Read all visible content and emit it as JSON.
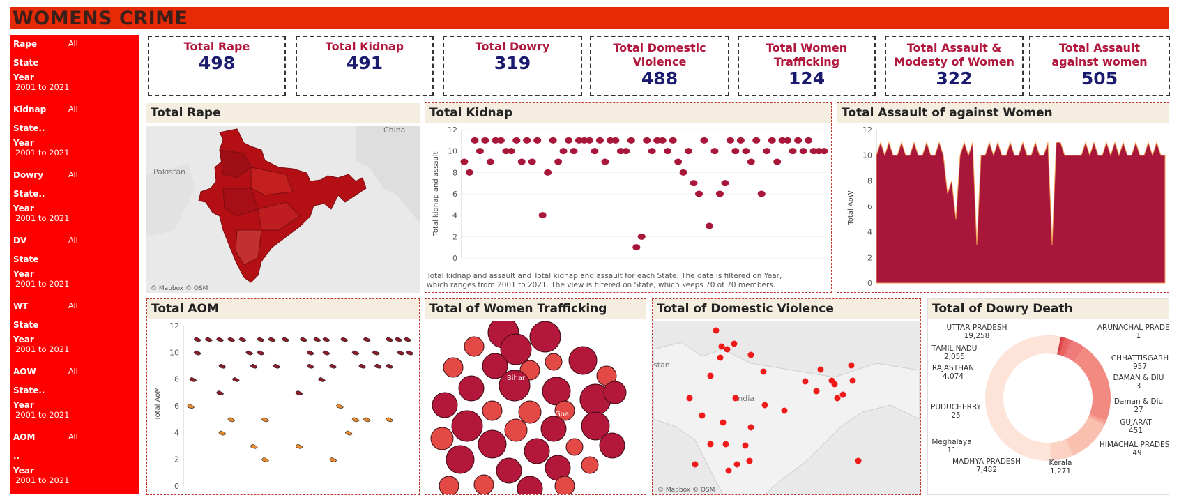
{
  "header": {
    "title": "WOMENS CRIME"
  },
  "filters": [
    {
      "name": "Rape",
      "all": "All",
      "sub": "State",
      "year": "Year",
      "range": "2001 to 2021"
    },
    {
      "name": "Kidnap",
      "all": "All",
      "sub": "State..",
      "year": "Year",
      "range": "2001 to 2021"
    },
    {
      "name": "Dowry",
      "all": "All",
      "sub": " State..",
      "year": "Year",
      "range": "2001 to 2021"
    },
    {
      "name": "DV",
      "all": "All",
      "sub": "State",
      "year": "Year",
      "range": "2001 to 2021"
    },
    {
      "name": "WT",
      "all": "All",
      "sub": " State",
      "year": "Year",
      "range": "2001 to 2021"
    },
    {
      "name": "AOW",
      "all": "All",
      "sub": " State..",
      "year": "Year",
      "range": "2001 to 2021"
    },
    {
      "name": "AOM",
      "all": "All",
      "sub": "..",
      "year": "Year",
      "range": "2001 to 2021"
    }
  ],
  "kpis": [
    {
      "label": "Total  Rape",
      "label2": "",
      "value": "498"
    },
    {
      "label": "Total Kidnap",
      "label2": "",
      "value": "491"
    },
    {
      "label": "Total Dowry",
      "label2": "",
      "value": "319"
    },
    {
      "label": "Total Domestic",
      "label2": "Violence",
      "value": "488"
    },
    {
      "label": "Total Women",
      "label2": "Trafficking",
      "value": "124"
    },
    {
      "label": "Total Assault &",
      "label2": "Modesty of Women",
      "value": "322"
    },
    {
      "label": "Total Assault",
      "label2": "against women",
      "value": "505"
    }
  ],
  "panels": {
    "rape": {
      "title": "Total Rape",
      "credit": "© Mapbox © OSM",
      "labels": {
        "china": "China",
        "pakistan": "Pakistan"
      }
    },
    "kidnap": {
      "title": "Total Kidnap",
      "ylabel": "Total kidnap and assault",
      "caption1": "Total kidnap and assault and Total kidnap and assault for each State. The data is filtered on Year,",
      "caption2": "which ranges from 2001 to 2021. The view is filtered on State, which keeps 70 of 70 members."
    },
    "aow": {
      "title": "Total Assault of against Women",
      "ylabel": "Total AoW"
    },
    "aom": {
      "title": "Total AOM",
      "ylabel": "Total AoM"
    },
    "wt": {
      "title": "Total of Women Trafficking",
      "labels": {
        "bihar": "Bihar",
        "goa": "Goa"
      }
    },
    "dv": {
      "title": "Total of Domestic Violence",
      "credit": "© Mapbox © OSM",
      "labels": {
        "india": "India",
        "pakistan": "stan"
      }
    },
    "dowry": {
      "title": "Total of Dowry Death"
    }
  },
  "colors": {
    "accent": "#e62a06",
    "sidebar": "#ff0000",
    "crimson": "#a8173a",
    "kpi_label": "#b0173b",
    "kpi_value": "#1a1a6e"
  },
  "chart_data": [
    {
      "type": "scatter",
      "title": "Total Kidnap",
      "ylabel": "Total kidnap and assault",
      "ylim": [
        0,
        12
      ],
      "yticks": [
        0,
        2,
        4,
        6,
        8,
        10,
        12
      ],
      "values": [
        9,
        8,
        11,
        10,
        11,
        9,
        11,
        11,
        10,
        10,
        11,
        9,
        11,
        9,
        11,
        4,
        8,
        11,
        9,
        10,
        11,
        10,
        11,
        11,
        11,
        10,
        11,
        9,
        11,
        11,
        10,
        10,
        11,
        1,
        2,
        11,
        10,
        11,
        11,
        10,
        11,
        9,
        8,
        10,
        7,
        6,
        11,
        3,
        10,
        6,
        7,
        11,
        10,
        11,
        10,
        9,
        11,
        6,
        10,
        11,
        9,
        11,
        11,
        10,
        11,
        10,
        11,
        10,
        10,
        10
      ]
    },
    {
      "type": "area",
      "title": "Total Assault of against Women",
      "ylabel": "Total AoW",
      "ylim": [
        0,
        12
      ],
      "yticks": [
        0,
        2,
        4,
        6,
        8,
        10,
        12
      ],
      "values": [
        10,
        11,
        10,
        11,
        10,
        10,
        11,
        10,
        10,
        11,
        10,
        10,
        11,
        10,
        10,
        11,
        10,
        7,
        8,
        5,
        10,
        11,
        10,
        11,
        3,
        10,
        10,
        11,
        10,
        11,
        10,
        10,
        11,
        10,
        10,
        11,
        10,
        10,
        11,
        10,
        10,
        11,
        3,
        11,
        11,
        10,
        10,
        10,
        10,
        10,
        11,
        10,
        11,
        10,
        10,
        11,
        10,
        11,
        10,
        11,
        10,
        10,
        11,
        10,
        10,
        11,
        10,
        11,
        10,
        10
      ]
    },
    {
      "type": "scatter",
      "title": "Total AOM",
      "ylabel": "Total AoM",
      "ylim": [
        0,
        12
      ],
      "yticks": [
        0,
        2,
        4,
        6,
        8,
        10,
        12
      ],
      "series": [
        {
          "name": "",
          "x": [
            5,
            10,
            15,
            20,
            25,
            33,
            38,
            44,
            52,
            58,
            62,
            70,
            80,
            90,
            94,
            98,
            5,
            28,
            33,
            55,
            62,
            75,
            84,
            95,
            99,
            16,
            30,
            40,
            55,
            65,
            78,
            85,
            90,
            3,
            22,
            60,
            15,
            50
          ],
          "y": [
            11,
            11,
            11,
            11,
            11,
            11,
            11,
            11,
            11,
            11,
            11,
            11,
            11,
            11,
            11,
            11,
            10,
            10,
            10,
            10,
            10,
            10,
            10,
            10,
            10,
            9,
            9,
            9,
            9,
            9,
            9,
            9,
            9,
            8,
            8,
            8,
            7,
            7
          ]
        },
        {
          "name": "",
          "x": [
            2,
            20,
            35,
            68,
            75,
            90,
            16,
            72,
            80,
            50,
            30,
            65,
            35
          ],
          "y": [
            6,
            5,
            5,
            6,
            5,
            5,
            4,
            4,
            5,
            3,
            3,
            2,
            2
          ]
        }
      ]
    },
    {
      "type": "pie",
      "title": "Total of Dowry Death",
      "labels": [
        "UTTAR PRADESH",
        "TAMIL NADU",
        "RAJASTHAN",
        "PUDUCHERRY",
        "Meghalaya",
        "MADHYA PRADESH",
        "Kerala",
        "HIMACHAL PRADESH",
        "GUJARAT",
        "Daman & Diu",
        "DAMAN & DIU",
        "CHHATTISGARH",
        "ARUNACHAL PRADESH"
      ],
      "values": [
        19258,
        2055,
        4074,
        25,
        11,
        7482,
        1271,
        49,
        451,
        27,
        3,
        957,
        1
      ],
      "display": [
        "19,258",
        "2,055",
        "4,074",
        "25",
        "11",
        "7,482",
        "1,271",
        "49",
        "451",
        "27",
        "3",
        "957",
        "1"
      ]
    }
  ]
}
